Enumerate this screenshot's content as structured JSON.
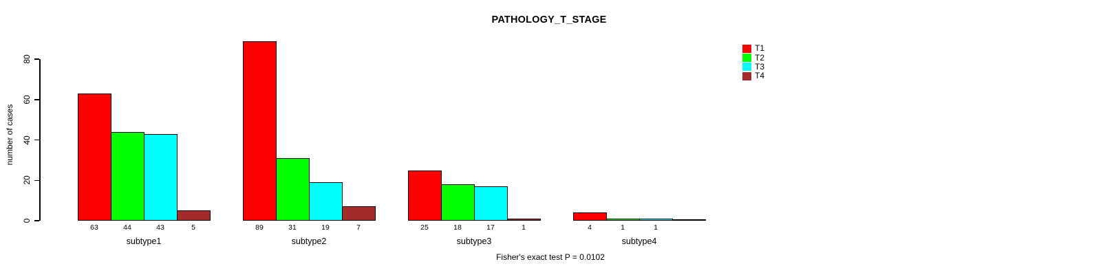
{
  "chart_data": {
    "type": "bar",
    "grouped": true,
    "title": "PATHOLOGY_T_STAGE",
    "categories": [
      "subtype1",
      "subtype2",
      "subtype3",
      "subtype4"
    ],
    "series": [
      {
        "name": "T1",
        "color": "#FF0000",
        "values": [
          63,
          89,
          25,
          4
        ]
      },
      {
        "name": "T2",
        "color": "#00FF00",
        "values": [
          44,
          31,
          18,
          1
        ]
      },
      {
        "name": "T3",
        "color": "#00FFFF",
        "values": [
          43,
          19,
          17,
          1
        ]
      },
      {
        "name": "T4",
        "color": "#A52A2A",
        "values": [
          5,
          7,
          1,
          0
        ]
      }
    ],
    "xlabel": "",
    "ylabel": "number of cases",
    "yticks": [
      0,
      20,
      40,
      60,
      80
    ],
    "ylim": [
      0,
      93
    ],
    "grid": false,
    "bar_value_labels_visible": true,
    "legend_position": "top-right",
    "annotation": "Fisher's exact test P = 0.0102"
  }
}
